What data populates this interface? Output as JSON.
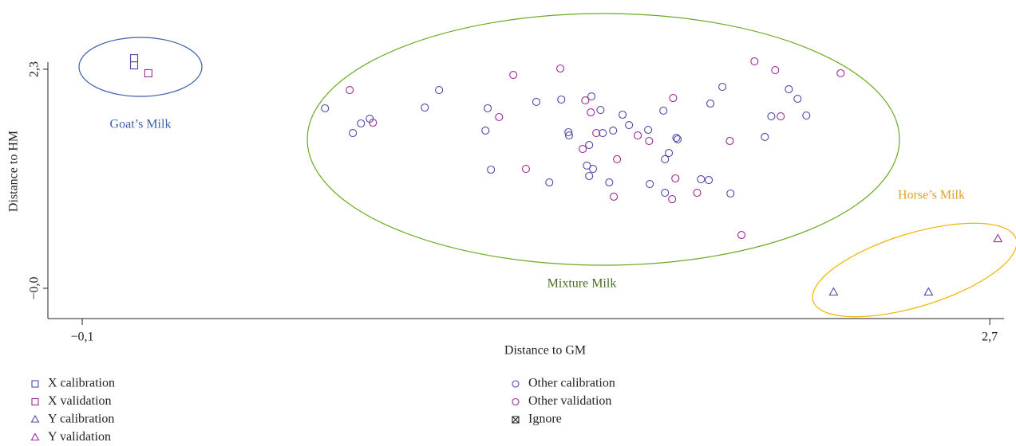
{
  "chart_data": {
    "type": "scatter",
    "x_label": "Distance to GM",
    "y_label": "Distance to HM",
    "xlim": [
      -0.206,
      2.744
    ],
    "ylim": [
      -0.318,
      2.375
    ],
    "xticks": [
      {
        "value": -0.1,
        "label": "−0,1"
      },
      {
        "value": 2.7,
        "label": "2,7"
      }
    ],
    "yticks": [
      {
        "value": 0,
        "label": "−0,0"
      },
      {
        "value": 2.3,
        "label": "2,3"
      }
    ],
    "annotations": [
      {
        "text": "Goat’s Milk",
        "color": "#3f5ea8"
      },
      {
        "text": "Mixture Milk",
        "color": "#4a6a20"
      },
      {
        "text": "Horse’s Milk",
        "color": "#e0a020"
      }
    ],
    "series": [
      {
        "name": "X calibration",
        "marker": "square",
        "color": "#4a4aa8",
        "x": [
          0.06,
          0.06
        ],
        "y": [
          2.416,
          2.341
        ]
      },
      {
        "name": "X validation",
        "marker": "square",
        "color": "#a0289a",
        "x": [
          0.104
        ],
        "y": [
          2.258
        ]
      },
      {
        "name": "Y calibration",
        "marker": "triangle",
        "color": "#4a4aa8",
        "x": [
          2.218,
          2.511
        ],
        "y": [
          -0.042,
          -0.042
        ]
      },
      {
        "name": "Y validation",
        "marker": "triangle",
        "color": "#a0289a",
        "x": [
          2.725
        ],
        "y": [
          0.518
        ]
      },
      {
        "name": "Other calibration",
        "marker": "circle",
        "color": "#4a4aa8",
        "x": [
          0.649,
          0.735,
          0.76,
          0.787,
          0.957,
          1.001,
          1.144,
          1.151,
          1.161,
          1.341,
          1.301,
          1.378,
          1.4,
          1.402,
          1.464,
          1.471,
          1.499,
          1.506,
          1.457,
          1.476,
          1.464,
          1.526,
          1.538,
          1.567,
          1.587,
          1.646,
          1.651,
          1.693,
          1.698,
          1.71,
          1.698,
          1.733,
          1.737,
          1.809,
          1.833,
          1.838,
          1.875,
          1.9,
          2.006,
          2.026,
          2.08,
          2.107,
          2.134
        ],
        "y": [
          1.89,
          1.63,
          1.731,
          1.781,
          1.898,
          2.082,
          1.656,
          1.89,
          1.246,
          1.112,
          1.957,
          1.982,
          1.639,
          1.605,
          1.505,
          2.015,
          1.873,
          1.63,
          1.288,
          1.254,
          1.179,
          1.112,
          1.656,
          1.823,
          1.714,
          1.664,
          1.095,
          1.865,
          1.355,
          1.421,
          1.003,
          1.58,
          1.564,
          1.145,
          1.137,
          1.94,
          2.115,
          0.995,
          1.589,
          1.806,
          2.09,
          1.99,
          1.814
        ]
      },
      {
        "name": "Other validation",
        "marker": "circle",
        "color": "#a0289a",
        "x": [
          0.725,
          0.797,
          1.23,
          1.375,
          1.186,
          1.269,
          1.452,
          1.469,
          1.486,
          1.444,
          1.55,
          1.54,
          1.614,
          1.649,
          1.723,
          1.73,
          1.72,
          1.797,
          1.898,
          1.974,
          2.055,
          2.24,
          1.934,
          2.038
        ],
        "y": [
          2.082,
          1.739,
          2.241,
          2.308,
          1.798,
          1.254,
          1.973,
          1.848,
          1.63,
          1.463,
          1.355,
          0.962,
          1.605,
          1.547,
          1.998,
          1.154,
          0.936,
          1.003,
          1.547,
          2.383,
          1.806,
          2.258,
          0.56,
          2.291
        ]
      },
      {
        "name": "Ignore",
        "marker": "ignore",
        "color": "#222222",
        "x": [],
        "y": []
      }
    ]
  }
}
